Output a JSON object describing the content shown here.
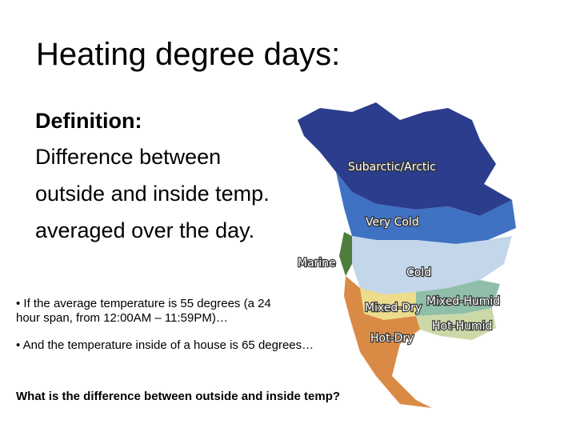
{
  "title": "Heating degree days:",
  "definition": {
    "heading": "Definition:",
    "lines": [
      "Difference between",
      "outside and inside temp.",
      "averaged over the day."
    ]
  },
  "map": {
    "labels": [
      "Subarctic/Arctic",
      "Very Cold",
      "Marine",
      "Cold",
      "Mixed-Humid",
      "Mixed-Dry",
      "Hot-Humid",
      "Hot-Dry"
    ]
  },
  "bullets": [
    {
      "lines": [
        "• If the average temperature is 55 degrees (a 24",
        "hour span, from 12:00AM – 11:59PM)…"
      ]
    },
    {
      "lines": [
        "• And the temperature inside of a house is 65 degrees…"
      ]
    }
  ],
  "question": "What is the difference between outside and inside temp?"
}
